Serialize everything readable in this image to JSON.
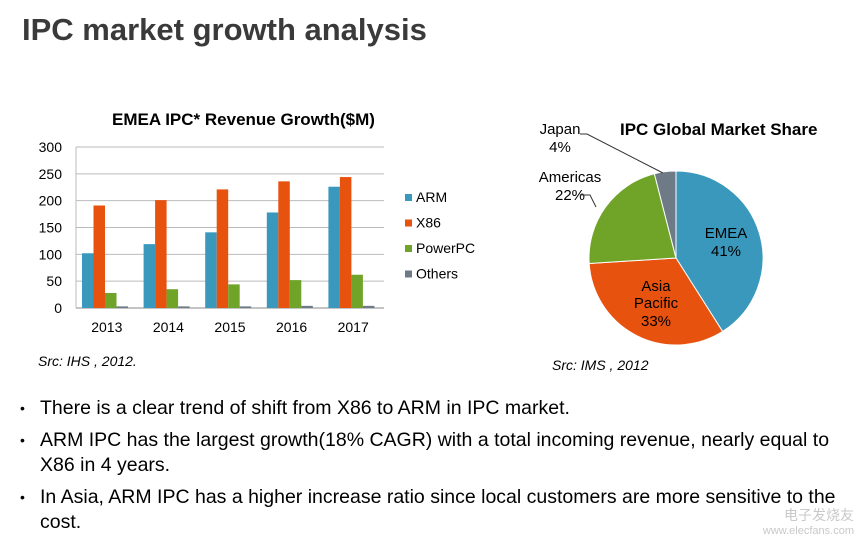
{
  "page_title": "IPC market growth analysis",
  "chart_data": [
    {
      "type": "bar",
      "title": "EMEA IPC* Revenue Growth($M)",
      "categories": [
        "2013",
        "2014",
        "2015",
        "2016",
        "2017"
      ],
      "ylim": [
        0,
        300
      ],
      "yticks": [
        0,
        50,
        100,
        150,
        200,
        250,
        300
      ],
      "grid": true,
      "legend": "right",
      "series": [
        {
          "name": "ARM",
          "color": "#3a98bd",
          "values": [
            102,
            119,
            141,
            178,
            226
          ]
        },
        {
          "name": "X86",
          "color": "#e8520f",
          "values": [
            191,
            201,
            221,
            236,
            244
          ]
        },
        {
          "name": "PowerPC",
          "color": "#6fa428",
          "values": [
            28,
            35,
            44,
            52,
            62
          ]
        },
        {
          "name": "Others",
          "color": "#6e7b87",
          "values": [
            3,
            3,
            3,
            4,
            4
          ]
        }
      ],
      "source": "Src:  IHS , 2012."
    },
    {
      "type": "pie",
      "title": "IPC Global Market Share",
      "slices": [
        {
          "name": "EMEA",
          "value": 41,
          "label": "41%",
          "color": "#3a98bd"
        },
        {
          "name": "Asia Pacific",
          "value": 33,
          "label": "33%",
          "color": "#e8520f"
        },
        {
          "name": "Americas",
          "value": 22,
          "label": "22%",
          "color": "#6fa428"
        },
        {
          "name": "Japan",
          "value": 4,
          "label": "4%",
          "color": "#6e7b87"
        }
      ],
      "source": "Src:  IMS , 2012"
    }
  ],
  "bullets": [
    "There is a clear trend of shift from X86 to ARM in IPC market.",
    "ARM IPC has the largest growth(18% CAGR) with a total incoming revenue, nearly equal to X86 in 4 years.",
    "In Asia, ARM IPC has a higher increase ratio since local customers are more sensitive to the cost."
  ],
  "watermark": {
    "brand": "电子发烧友",
    "url": "www.elecfans.com"
  }
}
